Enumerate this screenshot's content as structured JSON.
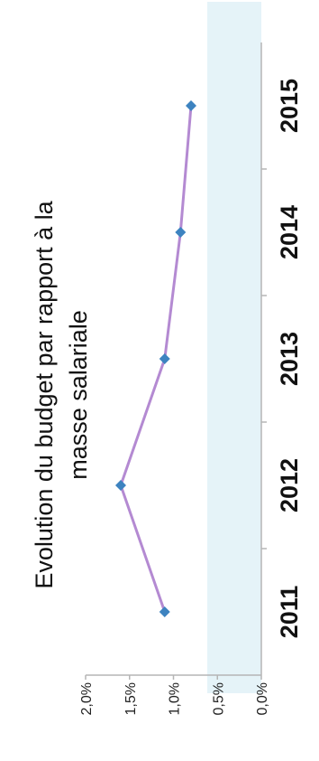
{
  "chart_data": {
    "type": "line",
    "title_lines": [
      "Evolution du budget par rapport à la",
      "masse salariale"
    ],
    "categories": [
      "2011",
      "2012",
      "2013",
      "2014",
      "2015"
    ],
    "series": [
      {
        "values": [
          1.1,
          1.6,
          1.1,
          0.92,
          0.8
        ]
      }
    ],
    "y_ticks": [
      "0,0%",
      "0,5%",
      "1,0%",
      "1,5%",
      "2,0%"
    ],
    "ylim": [
      0,
      2
    ],
    "grid": false,
    "colors": {
      "line": "#b48ad2",
      "marker": "#3d83c0",
      "axis": "#b5b5b5",
      "band": "#cfe9f2"
    }
  }
}
